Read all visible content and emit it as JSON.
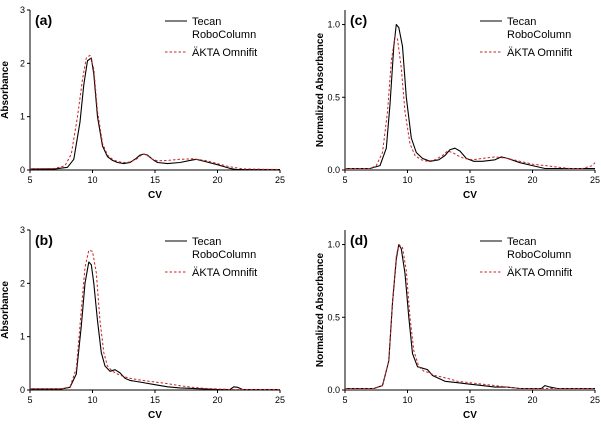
{
  "colors": {
    "robocolumn": "#000000",
    "omnifit": "#cc2222",
    "axis": "#000000"
  },
  "chart_data": [
    {
      "type": "line",
      "panel_label": "(a)",
      "xlabel": "CV",
      "ylabel": "Absorbance",
      "xlim": [
        5,
        25
      ],
      "ylim": [
        0,
        3
      ],
      "xticks": [
        5,
        10,
        15,
        20,
        25
      ],
      "xtick_labels": [
        "5",
        "10",
        "15",
        "20",
        "25"
      ],
      "yticks": [
        0,
        1,
        2,
        3
      ],
      "ytick_labels": [
        "0",
        "1",
        "2",
        "3"
      ],
      "legend_position": "top-right",
      "series": [
        {
          "name": "Tecan RoboColumn",
          "name_lines": [
            "Tecan",
            "RoboColumn"
          ],
          "style": "solid",
          "x": [
            5,
            7,
            8,
            8.5,
            9,
            9.3,
            9.6,
            9.9,
            10.1,
            10.4,
            10.8,
            11.2,
            11.6,
            12,
            12.5,
            13,
            13.5,
            13.8,
            14.1,
            14.4,
            14.8,
            15.2,
            16,
            17,
            17.8,
            18.3,
            19,
            20,
            21,
            21.5,
            22,
            25
          ],
          "y": [
            0.02,
            0.02,
            0.05,
            0.2,
            0.9,
            1.6,
            2.05,
            2.1,
            1.8,
            1.0,
            0.45,
            0.25,
            0.18,
            0.14,
            0.12,
            0.14,
            0.22,
            0.28,
            0.3,
            0.28,
            0.2,
            0.14,
            0.12,
            0.14,
            0.18,
            0.2,
            0.16,
            0.1,
            0.03,
            0.01,
            0.01,
            0.01
          ]
        },
        {
          "name": "ÄKTA Omnifit",
          "name_lines": [
            "ÄKTA Omnifit"
          ],
          "style": "dashed",
          "x": [
            5,
            7,
            7.8,
            8.3,
            8.8,
            9.2,
            9.5,
            9.8,
            10.1,
            10.4,
            10.8,
            11.2,
            11.6,
            12,
            12.5,
            13,
            13.5,
            13.8,
            14.1,
            14.4,
            14.8,
            15.2,
            16,
            17,
            18,
            19,
            20,
            21,
            22,
            25
          ],
          "y": [
            0.02,
            0.03,
            0.08,
            0.3,
            1.0,
            1.7,
            2.1,
            2.15,
            1.9,
            1.1,
            0.5,
            0.28,
            0.2,
            0.16,
            0.14,
            0.15,
            0.2,
            0.26,
            0.3,
            0.27,
            0.2,
            0.17,
            0.18,
            0.2,
            0.21,
            0.18,
            0.12,
            0.06,
            0.02,
            0.01
          ]
        }
      ]
    },
    {
      "type": "line",
      "panel_label": "(c)",
      "xlabel": "CV",
      "ylabel": "Normalized Absorbance",
      "xlim": [
        5,
        25
      ],
      "ylim": [
        0,
        1.1
      ],
      "xticks": [
        5,
        10,
        15,
        20,
        25
      ],
      "xtick_labels": [
        "5",
        "10",
        "15",
        "20",
        "25"
      ],
      "yticks": [
        0,
        0.5,
        1
      ],
      "ytick_labels": [
        "0.0",
        "0.5",
        "1.0"
      ],
      "legend_position": "top-right",
      "series": [
        {
          "name": "Tecan RoboColumn",
          "name_lines": [
            "Tecan",
            "RoboColumn"
          ],
          "style": "solid",
          "x": [
            5,
            7,
            7.8,
            8.3,
            8.6,
            8.9,
            9.1,
            9.3,
            9.6,
            9.9,
            10.3,
            10.7,
            11.2,
            11.8,
            12.5,
            13,
            13.4,
            13.8,
            14.2,
            14.7,
            15.3,
            16,
            17,
            17.5,
            18,
            19,
            20,
            21,
            25
          ],
          "y": [
            0.01,
            0.01,
            0.03,
            0.15,
            0.45,
            0.85,
            1.0,
            0.98,
            0.85,
            0.5,
            0.22,
            0.12,
            0.08,
            0.06,
            0.07,
            0.1,
            0.14,
            0.15,
            0.13,
            0.08,
            0.06,
            0.06,
            0.07,
            0.09,
            0.08,
            0.05,
            0.03,
            0.01,
            0.01
          ]
        },
        {
          "name": "ÄKTA Omnifit",
          "name_lines": [
            "ÄKTA Omnifit"
          ],
          "style": "dashed",
          "x": [
            5,
            7,
            7.5,
            8,
            8.4,
            8.7,
            9,
            9.2,
            9.5,
            9.8,
            10.2,
            10.6,
            11.1,
            11.6,
            12.2,
            12.8,
            13.2,
            13.6,
            14,
            14.5,
            15.2,
            16,
            17,
            18,
            19,
            20,
            21,
            22,
            23,
            24,
            24.8,
            25
          ],
          "y": [
            0.01,
            0.01,
            0.03,
            0.12,
            0.4,
            0.75,
            0.92,
            0.9,
            0.7,
            0.4,
            0.18,
            0.1,
            0.07,
            0.06,
            0.07,
            0.1,
            0.13,
            0.12,
            0.1,
            0.08,
            0.07,
            0.08,
            0.09,
            0.08,
            0.06,
            0.04,
            0.03,
            0.02,
            0.01,
            0.01,
            0.03,
            0.05
          ]
        }
      ]
    },
    {
      "type": "line",
      "panel_label": "(b)",
      "xlabel": "CV",
      "ylabel": "Absorbance",
      "xlim": [
        5,
        25
      ],
      "ylim": [
        0,
        3
      ],
      "xticks": [
        5,
        10,
        15,
        20,
        25
      ],
      "xtick_labels": [
        "5",
        "10",
        "15",
        "20",
        "25"
      ],
      "yticks": [
        0,
        1,
        2,
        3
      ],
      "ytick_labels": [
        "0",
        "1",
        "2",
        "3"
      ],
      "legend_position": "top-right",
      "series": [
        {
          "name": "Tecan RoboColumn",
          "name_lines": [
            "Tecan",
            "RoboColumn"
          ],
          "style": "solid",
          "x": [
            5,
            7.5,
            8.2,
            8.7,
            9.1,
            9.4,
            9.7,
            9.9,
            10.1,
            10.4,
            10.7,
            11,
            11.4,
            11.8,
            12.2,
            12.6,
            13,
            14,
            15,
            16,
            17,
            18,
            19,
            20,
            21,
            21.3,
            21.6,
            22,
            25
          ],
          "y": [
            0.02,
            0.02,
            0.05,
            0.3,
            1.2,
            2.0,
            2.4,
            2.35,
            2.0,
            1.3,
            0.7,
            0.45,
            0.35,
            0.38,
            0.32,
            0.22,
            0.18,
            0.14,
            0.1,
            0.06,
            0.04,
            0.03,
            0.02,
            0.01,
            0.01,
            0.06,
            0.05,
            0.01,
            0.01
          ]
        },
        {
          "name": "ÄKTA Omnifit",
          "name_lines": [
            "ÄKTA Omnifit"
          ],
          "style": "dashed",
          "x": [
            5,
            7.5,
            8.2,
            8.7,
            9.1,
            9.4,
            9.7,
            10,
            10.3,
            10.6,
            10.9,
            11.2,
            11.6,
            12,
            12.5,
            13,
            14,
            15,
            16,
            17,
            18,
            19,
            20,
            21,
            22,
            25
          ],
          "y": [
            0.02,
            0.02,
            0.06,
            0.4,
            1.5,
            2.3,
            2.62,
            2.6,
            2.2,
            1.3,
            0.7,
            0.45,
            0.35,
            0.3,
            0.25,
            0.22,
            0.18,
            0.15,
            0.12,
            0.08,
            0.05,
            0.03,
            0.02,
            0.01,
            0.01,
            0.01
          ]
        }
      ]
    },
    {
      "type": "line",
      "panel_label": "(d)",
      "xlabel": "CV",
      "ylabel": "Normalized Absorbance",
      "xlim": [
        5,
        25
      ],
      "ylim": [
        0,
        1.1
      ],
      "xticks": [
        5,
        10,
        15,
        20,
        25
      ],
      "xtick_labels": [
        "5",
        "10",
        "15",
        "20",
        "25"
      ],
      "yticks": [
        0,
        0.5,
        1
      ],
      "ytick_labels": [
        "0.0",
        "0.5",
        "1.0"
      ],
      "legend_position": "top-right",
      "series": [
        {
          "name": "Tecan RoboColumn",
          "name_lines": [
            "Tecan",
            "RoboColumn"
          ],
          "style": "solid",
          "x": [
            5,
            7.3,
            8,
            8.5,
            8.8,
            9.1,
            9.3,
            9.5,
            9.8,
            10.1,
            10.4,
            10.8,
            11.2,
            11.6,
            12,
            12.5,
            13,
            14,
            15,
            16,
            17,
            18,
            19,
            20,
            20.7,
            21,
            21.4,
            22,
            25
          ],
          "y": [
            0.01,
            0.01,
            0.03,
            0.2,
            0.6,
            0.9,
            1.0,
            0.97,
            0.8,
            0.5,
            0.25,
            0.16,
            0.15,
            0.14,
            0.1,
            0.08,
            0.06,
            0.05,
            0.04,
            0.03,
            0.02,
            0.02,
            0.01,
            0.01,
            0.01,
            0.03,
            0.02,
            0.01,
            0.01
          ]
        },
        {
          "name": "ÄKTA Omnifit",
          "name_lines": [
            "ÄKTA Omnifit"
          ],
          "style": "dashed",
          "x": [
            5,
            7.3,
            8,
            8.5,
            8.8,
            9.1,
            9.3,
            9.6,
            9.9,
            10.2,
            10.5,
            10.9,
            11.3,
            11.7,
            12.2,
            12.7,
            13.2,
            14,
            15,
            16,
            17,
            18,
            19,
            20,
            21,
            22,
            25
          ],
          "y": [
            0.01,
            0.01,
            0.03,
            0.2,
            0.6,
            0.92,
            1.0,
            0.98,
            0.82,
            0.5,
            0.27,
            0.16,
            0.13,
            0.12,
            0.1,
            0.09,
            0.08,
            0.06,
            0.05,
            0.04,
            0.03,
            0.02,
            0.01,
            0.01,
            0.01,
            0.01,
            0.01
          ]
        }
      ]
    }
  ]
}
